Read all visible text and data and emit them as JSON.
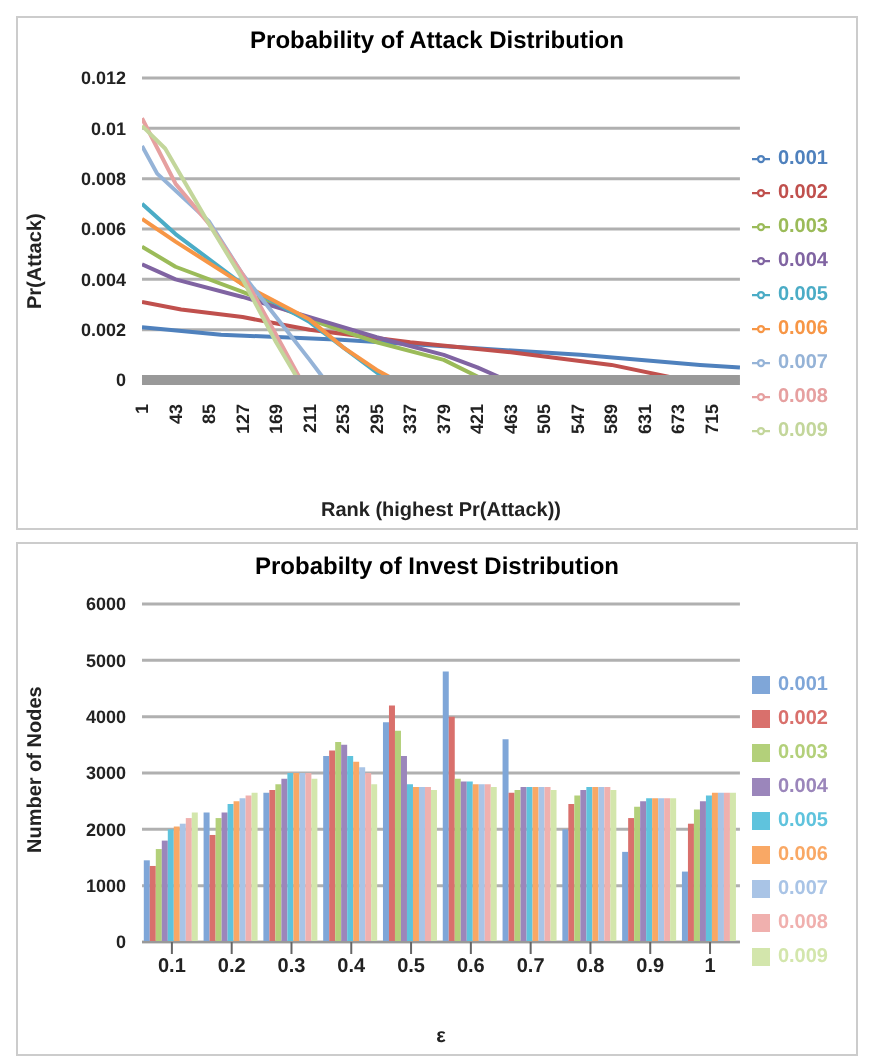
{
  "chart_data": [
    {
      "type": "line",
      "title": "Probability of Attack Distribution",
      "xlabel": "Rank (highest Pr(Attack))",
      "ylabel": "Pr(Attack)",
      "xlim": [
        1,
        750
      ],
      "xticks": [
        1,
        43,
        85,
        127,
        169,
        211,
        253,
        295,
        337,
        379,
        421,
        463,
        505,
        547,
        589,
        631,
        673,
        715
      ],
      "ylim": [
        0,
        0.012
      ],
      "yticks": [
        0,
        0.002,
        0.004,
        0.006,
        0.008,
        0.01,
        0.012
      ],
      "grid": "y",
      "legend": "right",
      "marker": "none",
      "series": [
        {
          "name": "0.001",
          "color": "#4f81bd",
          "x": [
            1,
            100,
            250,
            400,
            550,
            700,
            750
          ],
          "values": [
            0.0021,
            0.0018,
            0.0016,
            0.0013,
            0.001,
            0.0006,
            0.0005
          ]
        },
        {
          "name": "0.002",
          "color": "#c0504d",
          "x": [
            1,
            50,
            127,
            211,
            337,
            463,
            589,
            680
          ],
          "values": [
            0.0031,
            0.0028,
            0.0025,
            0.002,
            0.0015,
            0.0011,
            0.0006,
            0
          ]
        },
        {
          "name": "0.003",
          "color": "#9bbb59",
          "x": [
            1,
            43,
            127,
            211,
            295,
            379,
            430
          ],
          "values": [
            0.0053,
            0.0045,
            0.0035,
            0.0024,
            0.0015,
            0.0008,
            0
          ]
        },
        {
          "name": "0.004",
          "color": "#8064a2",
          "x": [
            1,
            43,
            127,
            211,
            295,
            379,
            421,
            457
          ],
          "values": [
            0.0046,
            0.004,
            0.0033,
            0.0025,
            0.0017,
            0.001,
            0.0005,
            0
          ]
        },
        {
          "name": "0.005",
          "color": "#4bacc6",
          "x": [
            1,
            43,
            127,
            211,
            253,
            295,
            310
          ],
          "values": [
            0.007,
            0.0058,
            0.0038,
            0.0023,
            0.0013,
            0.0003,
            0
          ]
        },
        {
          "name": "0.006",
          "color": "#f79646",
          "x": [
            1,
            43,
            127,
            211,
            253,
            295,
            318
          ],
          "values": [
            0.0064,
            0.0055,
            0.0038,
            0.0024,
            0.0013,
            0.0004,
            0
          ]
        },
        {
          "name": "0.007",
          "color": "#95b3d7",
          "x": [
            1,
            20,
            85,
            127,
            169,
            211,
            230
          ],
          "values": [
            0.0093,
            0.0082,
            0.0063,
            0.0042,
            0.0025,
            0.0008,
            0
          ]
        },
        {
          "name": "0.008",
          "color": "#e6a0a0",
          "x": [
            1,
            43,
            85,
            127,
            169,
            200
          ],
          "values": [
            0.0104,
            0.0078,
            0.0062,
            0.0042,
            0.0018,
            0
          ]
        },
        {
          "name": "0.009",
          "color": "#c3d69b",
          "x": [
            1,
            30,
            85,
            127,
            169,
            197
          ],
          "values": [
            0.0101,
            0.0092,
            0.0062,
            0.004,
            0.0015,
            0
          ]
        }
      ]
    },
    {
      "type": "bar",
      "title": "Probabilty of Invest Distribution",
      "xlabel": "ε",
      "ylabel": "Number of Nodes",
      "categories": [
        "0.1",
        "0.2",
        "0.3",
        "0.4",
        "0.5",
        "0.6",
        "0.7",
        "0.8",
        "0.9",
        "1"
      ],
      "ylim": [
        0,
        6000
      ],
      "yticks": [
        0,
        1000,
        2000,
        3000,
        4000,
        5000,
        6000
      ],
      "grid": "y",
      "legend": "right",
      "series": [
        {
          "name": "0.001",
          "color": "#7fa6d8",
          "values": [
            1450,
            2300,
            2650,
            3300,
            3900,
            4800,
            3600,
            2000,
            1600,
            1250
          ]
        },
        {
          "name": "0.002",
          "color": "#d9706c",
          "values": [
            1350,
            1900,
            2700,
            3400,
            4200,
            4000,
            2650,
            2450,
            2200,
            2100
          ]
        },
        {
          "name": "0.003",
          "color": "#b3d07a",
          "values": [
            1650,
            2200,
            2800,
            3550,
            3750,
            2900,
            2700,
            2600,
            2400,
            2350
          ]
        },
        {
          "name": "0.004",
          "color": "#9b86bb",
          "values": [
            1800,
            2300,
            2900,
            3500,
            3300,
            2850,
            2750,
            2700,
            2500,
            2500
          ]
        },
        {
          "name": "0.005",
          "color": "#5fc3dd",
          "values": [
            2000,
            2450,
            3000,
            3300,
            2800,
            2850,
            2750,
            2750,
            2550,
            2600
          ]
        },
        {
          "name": "0.006",
          "color": "#f9a865",
          "values": [
            2050,
            2500,
            3000,
            3200,
            2750,
            2800,
            2750,
            2750,
            2550,
            2650
          ]
        },
        {
          "name": "0.007",
          "color": "#a9c4e6",
          "values": [
            2100,
            2550,
            3000,
            3100,
            2750,
            2800,
            2750,
            2750,
            2550,
            2650
          ]
        },
        {
          "name": "0.008",
          "color": "#f0b0ae",
          "values": [
            2200,
            2600,
            3000,
            3000,
            2750,
            2800,
            2750,
            2750,
            2550,
            2650
          ]
        },
        {
          "name": "0.009",
          "color": "#d3e6ac",
          "values": [
            2300,
            2650,
            2900,
            2800,
            2700,
            2750,
            2700,
            2700,
            2550,
            2650
          ]
        }
      ]
    }
  ]
}
